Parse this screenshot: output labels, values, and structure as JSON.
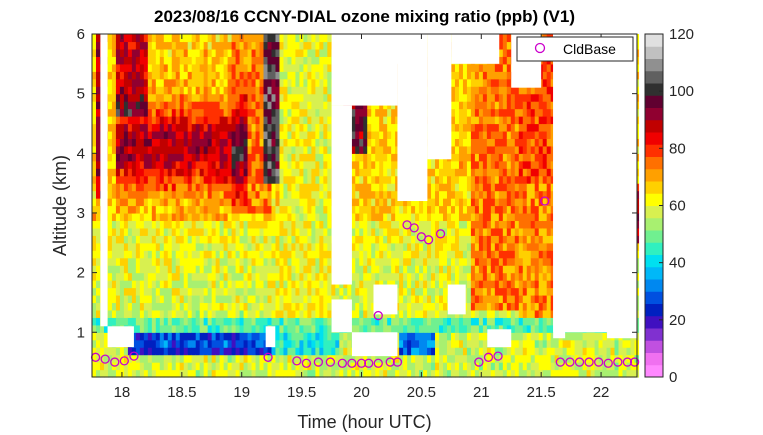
{
  "chart_data": {
    "type": "heatmap",
    "title": "2023/08/16 CCNY-DIAL ozone mixing ratio (ppb) (V1)",
    "xlabel": "Time (hour UTC)",
    "ylabel": "Altitude (km)",
    "xlim": [
      17.75,
      22.3
    ],
    "ylim": [
      0.25,
      6
    ],
    "x_ticks": [
      18,
      18.5,
      19,
      19.5,
      20,
      20.5,
      21,
      21.5,
      22
    ],
    "x_tick_labels": [
      "18",
      "18.5",
      "19",
      "19.5",
      "20",
      "20.5",
      "21",
      "21.5",
      "22"
    ],
    "y_ticks": [
      1,
      2,
      3,
      4,
      5,
      6
    ],
    "y_tick_labels": [
      "1",
      "2",
      "3",
      "4",
      "5",
      "6"
    ],
    "colorbar": {
      "range": [
        0,
        120
      ],
      "ticks": [
        0,
        20,
        40,
        60,
        80,
        100,
        120
      ],
      "tick_labels": [
        "0",
        "20",
        "40",
        "60",
        "80",
        "100",
        "120"
      ],
      "colors": [
        "#ff88ff",
        "#f070f0",
        "#c050e0",
        "#8030d0",
        "#4010c0",
        "#0020c0",
        "#0050e0",
        "#0088f0",
        "#00b8f8",
        "#00e0f0",
        "#30f0c0",
        "#70f090",
        "#a8f070",
        "#d8f050",
        "#ffff00",
        "#ffd000",
        "#ffa000",
        "#ff7000",
        "#ff3000",
        "#f00000",
        "#c00000",
        "#900030",
        "#600030",
        "#303030",
        "#606060",
        "#909090",
        "#c0c0c0",
        "#e0e0e0"
      ]
    },
    "legend": {
      "entries": [
        "CldBase"
      ],
      "position": "top-right"
    },
    "grid": false,
    "no_data_regions": [
      [
        17.82,
        17.88,
        1.1,
        6.0
      ],
      [
        17.88,
        18.1,
        0.75,
        1.1
      ],
      [
        19.2,
        19.28,
        0.75,
        1.1
      ],
      [
        19.75,
        20.3,
        4.8,
        6.0
      ],
      [
        19.75,
        19.92,
        1.8,
        4.8
      ],
      [
        19.75,
        19.92,
        1.0,
        1.55
      ],
      [
        19.92,
        20.3,
        0.6,
        1.0
      ],
      [
        20.1,
        20.3,
        1.3,
        1.8
      ],
      [
        20.15,
        20.35,
        5.5,
        6.0
      ],
      [
        20.3,
        20.55,
        3.2,
        6.0
      ],
      [
        20.55,
        20.75,
        3.9,
        6.0
      ],
      [
        20.75,
        21.15,
        5.5,
        6.0
      ],
      [
        20.72,
        20.87,
        1.3,
        1.8
      ],
      [
        21.05,
        21.25,
        0.75,
        1.05
      ],
      [
        21.25,
        21.5,
        5.1,
        6.0
      ],
      [
        21.6,
        21.7,
        0.9,
        6.0
      ],
      [
        21.6,
        22.3,
        1.0,
        6.0
      ],
      [
        21.6,
        22.05,
        5.5,
        6.0
      ],
      [
        22.05,
        22.3,
        0.9,
        1.5
      ]
    ],
    "cloud_base": {
      "x": [
        17.78,
        17.86,
        17.94,
        18.02,
        18.1,
        19.22,
        19.46,
        19.54,
        19.64,
        19.74,
        19.84,
        19.92,
        20.0,
        20.06,
        20.14,
        20.24,
        20.3,
        20.38,
        20.44,
        20.5,
        20.56,
        20.66,
        20.98,
        21.06,
        21.14,
        21.66,
        21.74,
        21.82,
        21.9,
        21.98,
        22.06,
        22.14,
        22.22,
        22.28,
        20.14,
        21.53
      ],
      "y": [
        0.58,
        0.55,
        0.5,
        0.52,
        0.6,
        0.58,
        0.52,
        0.48,
        0.5,
        0.5,
        0.48,
        0.48,
        0.48,
        0.48,
        0.48,
        0.5,
        0.5,
        2.8,
        2.75,
        2.6,
        2.55,
        2.65,
        0.5,
        0.58,
        0.6,
        0.5,
        0.5,
        0.5,
        0.5,
        0.5,
        0.48,
        0.5,
        0.5,
        0.5,
        1.28,
        3.2
      ]
    }
  }
}
